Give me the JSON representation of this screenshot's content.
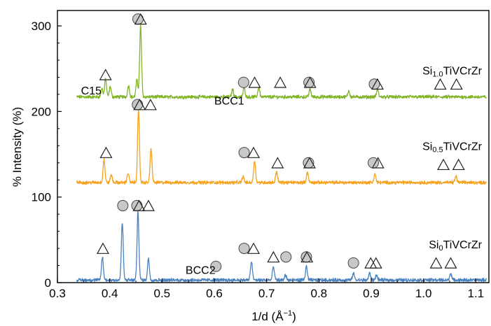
{
  "chart_data": {
    "type": "line",
    "xlabel": "1/d (Å",
    "xlabel_sup": "−1",
    "xlabel_close": ")",
    "ylabel": "% Intensity (%)",
    "xlim": [
      0.3,
      1.125
    ],
    "ylim": [
      0,
      318
    ],
    "x_ticks": [
      "0.3",
      "0.4",
      "0.5",
      "0.6",
      "0.7",
      "0.8",
      "0.9",
      "1.0",
      "1.1"
    ],
    "y_ticks": [
      "0",
      "100",
      "200",
      "300"
    ],
    "series": [
      {
        "label_main": "Si",
        "label_sub": "1.0",
        "label_rest": "TiVCrZr",
        "color": "#82b428",
        "baseline": 217,
        "peaks": [
          {
            "x": 0.385,
            "y": 227
          },
          {
            "x": 0.392,
            "y": 238
          },
          {
            "x": 0.401,
            "y": 229
          },
          {
            "x": 0.436,
            "y": 230
          },
          {
            "x": 0.452,
            "y": 237
          },
          {
            "x": 0.459,
            "y": 300
          },
          {
            "x": 0.635,
            "y": 226
          },
          {
            "x": 0.657,
            "y": 228
          },
          {
            "x": 0.685,
            "y": 228
          },
          {
            "x": 0.783,
            "y": 226
          },
          {
            "x": 0.857,
            "y": 224
          },
          {
            "x": 0.912,
            "y": 226
          }
        ]
      },
      {
        "label_main": "Si",
        "label_sub": "0.5",
        "label_rest": "TiVCrZr",
        "color": "#f5a21e",
        "baseline": 117,
        "peaks": [
          {
            "x": 0.389,
            "y": 144
          },
          {
            "x": 0.403,
            "y": 126
          },
          {
            "x": 0.435,
            "y": 128
          },
          {
            "x": 0.455,
            "y": 200
          },
          {
            "x": 0.479,
            "y": 157
          },
          {
            "x": 0.655,
            "y": 124
          },
          {
            "x": 0.677,
            "y": 143
          },
          {
            "x": 0.719,
            "y": 130
          },
          {
            "x": 0.778,
            "y": 129
          },
          {
            "x": 0.907,
            "y": 127
          },
          {
            "x": 1.062,
            "y": 124
          }
        ]
      },
      {
        "label_main": "Si",
        "label_sub": "0",
        "label_rest": "TiVCrZr",
        "color": "#4a82c0",
        "baseline": 3,
        "peaks": [
          {
            "x": 0.386,
            "y": 30
          },
          {
            "x": 0.424,
            "y": 70
          },
          {
            "x": 0.454,
            "y": 82
          },
          {
            "x": 0.474,
            "y": 28
          },
          {
            "x": 0.671,
            "y": 25
          },
          {
            "x": 0.713,
            "y": 19
          },
          {
            "x": 0.736,
            "y": 9
          },
          {
            "x": 0.776,
            "y": 19
          },
          {
            "x": 0.866,
            "y": 11
          },
          {
            "x": 0.897,
            "y": 11
          },
          {
            "x": 0.91,
            "y": 9
          },
          {
            "x": 1.052,
            "y": 11
          }
        ]
      }
    ],
    "phase_labels": [
      {
        "text": "C15",
        "x": 0.345,
        "y": 225
      },
      {
        "text": "BCC1",
        "x": 0.6,
        "y": 213
      },
      {
        "text": "BCC2",
        "x": 0.545,
        "y": 15
      }
    ],
    "markers": [
      {
        "kind": "triangle",
        "x": 0.392,
        "y": 243
      },
      {
        "kind": "circle",
        "x": 0.454,
        "y": 308
      },
      {
        "kind": "triangle",
        "x": 0.459,
        "y": 308
      },
      {
        "kind": "circle",
        "x": 0.656,
        "y": 234
      },
      {
        "kind": "triangle",
        "x": 0.677,
        "y": 234
      },
      {
        "kind": "triangle",
        "x": 0.726,
        "y": 234
      },
      {
        "kind": "circle",
        "x": 0.781,
        "y": 234
      },
      {
        "kind": "triangle",
        "x": 0.783,
        "y": 234
      },
      {
        "kind": "circle",
        "x": 0.906,
        "y": 232
      },
      {
        "kind": "triangle",
        "x": 0.912,
        "y": 232
      },
      {
        "kind": "triangle",
        "x": 1.032,
        "y": 232
      },
      {
        "kind": "triangle",
        "x": 1.063,
        "y": 232
      },
      {
        "kind": "triangle",
        "x": 0.393,
        "y": 152
      },
      {
        "kind": "circle",
        "x": 0.453,
        "y": 208
      },
      {
        "kind": "triangle",
        "x": 0.457,
        "y": 208
      },
      {
        "kind": "triangle",
        "x": 0.478,
        "y": 208
      },
      {
        "kind": "circle",
        "x": 0.657,
        "y": 152
      },
      {
        "kind": "triangle",
        "x": 0.675,
        "y": 152
      },
      {
        "kind": "triangle",
        "x": 0.721,
        "y": 140
      },
      {
        "kind": "circle",
        "x": 0.78,
        "y": 140
      },
      {
        "kind": "triangle",
        "x": 0.782,
        "y": 140
      },
      {
        "kind": "circle",
        "x": 0.904,
        "y": 140
      },
      {
        "kind": "triangle",
        "x": 0.913,
        "y": 140
      },
      {
        "kind": "triangle",
        "x": 1.038,
        "y": 138
      },
      {
        "kind": "triangle",
        "x": 1.067,
        "y": 138
      },
      {
        "kind": "triangle",
        "x": 0.387,
        "y": 40
      },
      {
        "kind": "circle",
        "x": 0.425,
        "y": 90
      },
      {
        "kind": "circle",
        "x": 0.452,
        "y": 90
      },
      {
        "kind": "triangle",
        "x": 0.456,
        "y": 90
      },
      {
        "kind": "triangle",
        "x": 0.474,
        "y": 90
      },
      {
        "kind": "circle",
        "x": 0.603,
        "y": 19
      },
      {
        "kind": "circle",
        "x": 0.657,
        "y": 40
      },
      {
        "kind": "triangle",
        "x": 0.675,
        "y": 40
      },
      {
        "kind": "triangle",
        "x": 0.713,
        "y": 30
      },
      {
        "kind": "circle",
        "x": 0.737,
        "y": 30
      },
      {
        "kind": "circle",
        "x": 0.776,
        "y": 30
      },
      {
        "kind": "triangle",
        "x": 0.777,
        "y": 30
      },
      {
        "kind": "circle",
        "x": 0.866,
        "y": 23
      },
      {
        "kind": "triangle",
        "x": 0.899,
        "y": 23
      },
      {
        "kind": "triangle",
        "x": 0.909,
        "y": 23
      },
      {
        "kind": "triangle",
        "x": 1.024,
        "y": 23
      },
      {
        "kind": "triangle",
        "x": 1.052,
        "y": 23
      }
    ],
    "grid": false,
    "legend": "inline labels on right"
  }
}
